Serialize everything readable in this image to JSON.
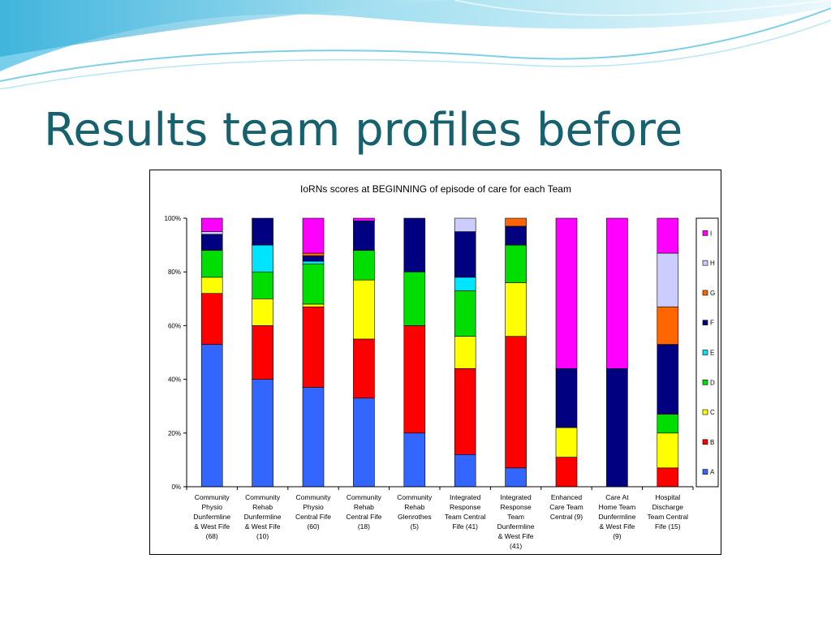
{
  "slide": {
    "title": "Results team profiles before"
  },
  "chart_data": {
    "type": "bar",
    "stacked": "percent",
    "title": "IoRNs scores at BEGINNING of episode of care for each Team",
    "xlabel": "",
    "ylabel": "",
    "ylim": [
      0,
      100
    ],
    "yticks": [
      "0%",
      "20%",
      "40%",
      "60%",
      "80%",
      "100%"
    ],
    "grid": false,
    "legend_position": "right",
    "categories": [
      [
        "Community",
        "Physio",
        "Dunfermline",
        "& West Fife",
        "(68)"
      ],
      [
        "Community",
        "Rehab",
        "Dunfermline",
        "& West Fife",
        "(10)"
      ],
      [
        "Community",
        "Physio",
        "Central Fife",
        "(60)"
      ],
      [
        "Community",
        "Rehab",
        "Central Fife",
        "(18)"
      ],
      [
        "Community",
        "Rehab",
        "Glenrothes",
        "(5)"
      ],
      [
        "Integrated",
        "Response",
        "Team Central",
        "Fife (41)"
      ],
      [
        "Integrated",
        "Response",
        "Team",
        "Dunfermline",
        "& West Fife",
        "(41)"
      ],
      [
        "Enhanced",
        "Care Team",
        "Central (9)"
      ],
      [
        "Care At",
        "Home Team",
        "Dunfermline",
        "& West Fife",
        "(9)"
      ],
      [
        "Hospital",
        "Discharge",
        "Team Central",
        "Fife (15)"
      ]
    ],
    "series": [
      {
        "name": "A",
        "color": "#3366ff",
        "values": [
          53,
          40,
          37,
          33,
          20,
          12,
          7,
          0,
          0,
          0
        ]
      },
      {
        "name": "B",
        "color": "#ff0000",
        "values": [
          19,
          20,
          30,
          22,
          40,
          32,
          49,
          11,
          0,
          7
        ]
      },
      {
        "name": "C",
        "color": "#ffff00",
        "values": [
          6,
          10,
          1,
          22,
          0,
          12,
          20,
          11,
          0,
          13
        ]
      },
      {
        "name": "D",
        "color": "#00dd00",
        "values": [
          10,
          10,
          15,
          11,
          20,
          17,
          14,
          0,
          0,
          7
        ]
      },
      {
        "name": "E",
        "color": "#00e5ff",
        "values": [
          0,
          10,
          1,
          0,
          0,
          5,
          0,
          0,
          0,
          0
        ]
      },
      {
        "name": "F",
        "color": "#000080",
        "values": [
          6,
          10,
          2,
          11,
          20,
          17,
          7,
          22,
          44,
          26
        ]
      },
      {
        "name": "G",
        "color": "#ff6600",
        "values": [
          0,
          0,
          1,
          0,
          0,
          0,
          3,
          0,
          0,
          14
        ]
      },
      {
        "name": "H",
        "color": "#ccccff",
        "values": [
          1,
          0,
          0,
          0,
          0,
          5,
          0,
          0,
          0,
          20
        ]
      },
      {
        "name": "I",
        "color": "#ff00ff",
        "values": [
          5,
          0,
          13,
          1,
          0,
          0,
          0,
          56,
          56,
          13
        ]
      }
    ]
  }
}
